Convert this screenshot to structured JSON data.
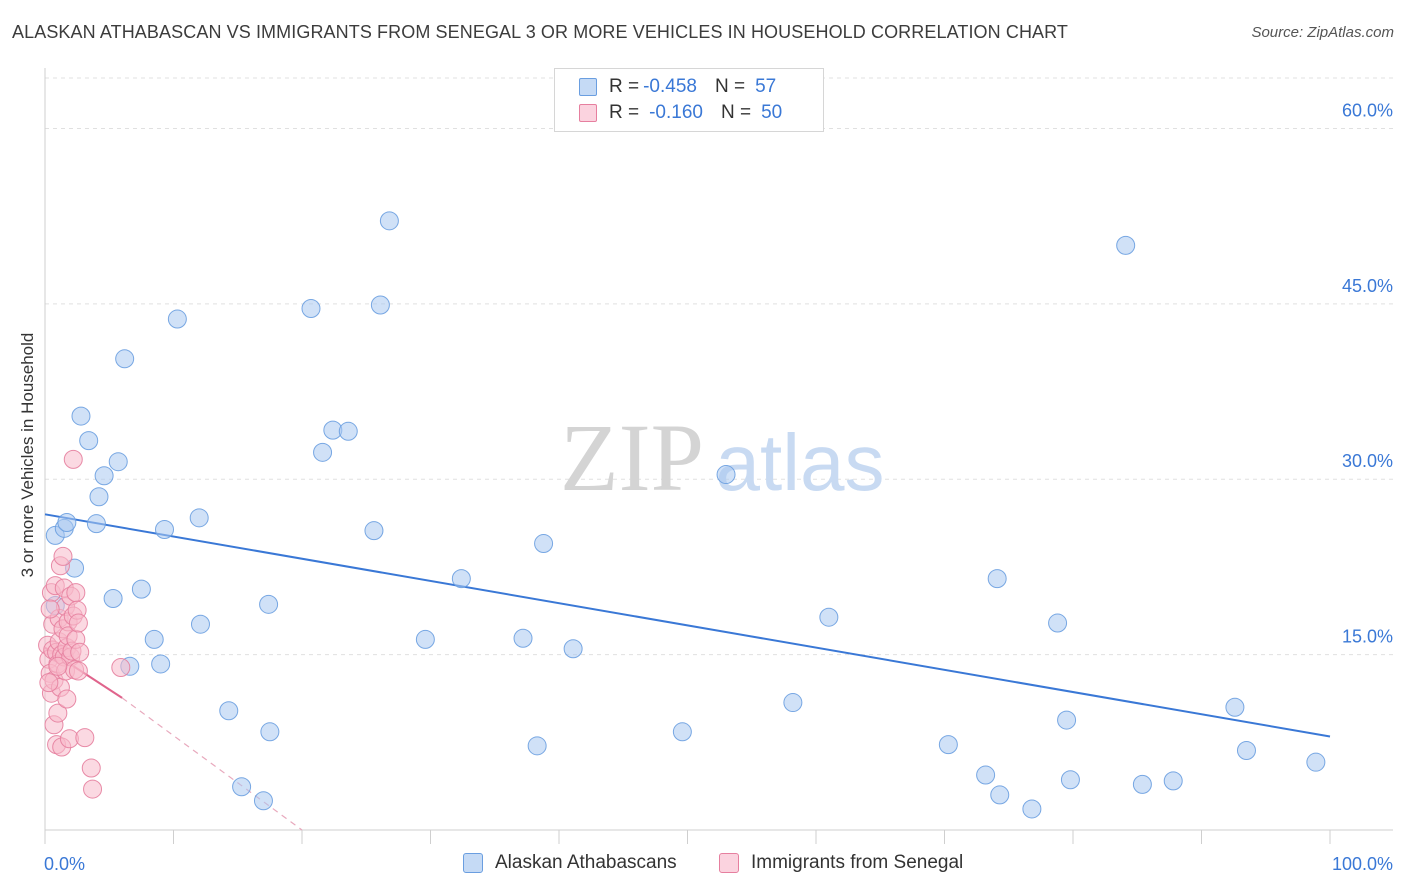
{
  "title": "ALASKAN ATHABASCAN VS IMMIGRANTS FROM SENEGAL 3 OR MORE VEHICLES IN HOUSEHOLD CORRELATION CHART",
  "source": "Source: ZipAtlas.com",
  "watermark": {
    "part1": "ZIP",
    "part2": "atlas"
  },
  "legend": {
    "rows": [
      {
        "r_label": "R =",
        "r_value": "-0.458",
        "n_label": "N =",
        "n_value": "57",
        "color": "#a9c8f0",
        "border": "#6a9ee0"
      },
      {
        "r_label": "R =",
        "r_value": "-0.160",
        "n_label": "N =",
        "n_value": "50",
        "color": "#f7b9cb",
        "border": "#e67f9f"
      }
    ]
  },
  "bottom_legend": [
    {
      "label": "Alaskan Athabascans",
      "color": "#a9c8f0",
      "border": "#6a9ee0"
    },
    {
      "label": "Immigrants from Senegal",
      "color": "#f7b9cb",
      "border": "#e67f9f"
    }
  ],
  "chart_data": {
    "type": "scatter",
    "title": "ALASKAN ATHABASCAN VS IMMIGRANTS FROM SENEGAL 3 OR MORE VEHICLES IN HOUSEHOLD CORRELATION CHART",
    "xlabel": "",
    "ylabel": "3 or more Vehicles in Household",
    "xlim": [
      0,
      100
    ],
    "ylim": [
      0,
      65
    ],
    "x_tick_labels": [
      "0.0%",
      "100.0%"
    ],
    "y_ticks": [
      15,
      30,
      45,
      60
    ],
    "y_tick_labels": [
      "15.0%",
      "30.0%",
      "45.0%",
      "60.0%"
    ],
    "grid": true,
    "series": [
      {
        "name": "Alaskan Athabascans",
        "color": "#6a9ee0",
        "fill": "#a9c8f0",
        "points": [
          [
            0.8,
            19.2
          ],
          [
            0.8,
            25.2
          ],
          [
            1.5,
            25.8
          ],
          [
            1.7,
            26.3
          ],
          [
            2.3,
            22.4
          ],
          [
            2.8,
            35.4
          ],
          [
            3.4,
            33.3
          ],
          [
            4.0,
            26.2
          ],
          [
            4.2,
            28.5
          ],
          [
            4.6,
            30.3
          ],
          [
            5.3,
            19.8
          ],
          [
            5.7,
            31.5
          ],
          [
            6.2,
            40.3
          ],
          [
            6.6,
            14.0
          ],
          [
            7.5,
            20.6
          ],
          [
            8.5,
            16.3
          ],
          [
            9.0,
            14.2
          ],
          [
            9.3,
            25.7
          ],
          [
            10.3,
            43.7
          ],
          [
            12.0,
            26.7
          ],
          [
            12.1,
            17.6
          ],
          [
            14.3,
            10.2
          ],
          [
            15.3,
            3.7
          ],
          [
            17.0,
            2.5
          ],
          [
            17.5,
            8.4
          ],
          [
            17.4,
            19.3
          ],
          [
            20.7,
            44.6
          ],
          [
            21.6,
            32.3
          ],
          [
            22.4,
            34.2
          ],
          [
            23.6,
            34.1
          ],
          [
            25.6,
            25.6
          ],
          [
            26.1,
            44.9
          ],
          [
            26.8,
            52.1
          ],
          [
            29.6,
            16.3
          ],
          [
            32.4,
            21.5
          ],
          [
            37.2,
            16.4
          ],
          [
            38.3,
            7.2
          ],
          [
            38.8,
            24.5
          ],
          [
            41.1,
            15.5
          ],
          [
            49.6,
            8.4
          ],
          [
            53.0,
            30.4
          ],
          [
            58.2,
            10.9
          ],
          [
            61.0,
            18.2
          ],
          [
            70.3,
            7.3
          ],
          [
            73.2,
            4.7
          ],
          [
            74.1,
            21.5
          ],
          [
            74.3,
            3.0
          ],
          [
            76.8,
            1.8
          ],
          [
            78.8,
            17.7
          ],
          [
            79.5,
            9.4
          ],
          [
            79.8,
            4.3
          ],
          [
            84.1,
            50.0
          ],
          [
            85.4,
            3.9
          ],
          [
            87.8,
            4.2
          ],
          [
            92.6,
            10.5
          ],
          [
            93.5,
            6.8
          ],
          [
            98.9,
            5.8
          ]
        ],
        "trend": {
          "x": [
            0,
            100
          ],
          "y": [
            27.0,
            8.0
          ]
        }
      },
      {
        "name": "Immigrants from Senegal",
        "color": "#e67f9f",
        "fill": "#f7b9cb",
        "points": [
          [
            0.2,
            15.8
          ],
          [
            0.3,
            14.6
          ],
          [
            0.4,
            13.4
          ],
          [
            0.5,
            11.7
          ],
          [
            0.5,
            20.3
          ],
          [
            0.6,
            17.6
          ],
          [
            0.6,
            15.4
          ],
          [
            0.7,
            9.0
          ],
          [
            0.7,
            12.8
          ],
          [
            0.8,
            20.9
          ],
          [
            0.9,
            15.2
          ],
          [
            0.9,
            7.3
          ],
          [
            1.0,
            14.2
          ],
          [
            1.0,
            10.0
          ],
          [
            1.1,
            18.1
          ],
          [
            1.1,
            16.1
          ],
          [
            1.2,
            22.6
          ],
          [
            1.2,
            12.2
          ],
          [
            1.3,
            15.0
          ],
          [
            1.3,
            7.1
          ],
          [
            1.4,
            23.4
          ],
          [
            1.4,
            17.2
          ],
          [
            1.5,
            14.8
          ],
          [
            1.5,
            20.7
          ],
          [
            1.6,
            19.1
          ],
          [
            1.6,
            13.6
          ],
          [
            1.7,
            15.6
          ],
          [
            1.7,
            11.2
          ],
          [
            1.8,
            17.8
          ],
          [
            1.8,
            16.6
          ],
          [
            1.9,
            7.8
          ],
          [
            2.0,
            14.8
          ],
          [
            2.0,
            20.0
          ],
          [
            2.1,
            15.3
          ],
          [
            2.2,
            31.7
          ],
          [
            2.2,
            18.3
          ],
          [
            2.3,
            13.7
          ],
          [
            2.4,
            16.3
          ],
          [
            2.4,
            20.3
          ],
          [
            2.5,
            18.8
          ],
          [
            2.6,
            17.7
          ],
          [
            2.6,
            13.6
          ],
          [
            2.7,
            15.2
          ],
          [
            3.1,
            7.9
          ],
          [
            3.6,
            5.3
          ],
          [
            3.7,
            3.5
          ],
          [
            5.9,
            13.9
          ],
          [
            1.0,
            14.0
          ],
          [
            0.4,
            18.9
          ],
          [
            0.3,
            12.6
          ]
        ],
        "trend": {
          "x": [
            0,
            6.0
          ],
          "y": [
            15.6,
            11.3
          ]
        },
        "trend_extension": {
          "x": [
            6.0,
            20.0
          ],
          "y": [
            11.3,
            0
          ]
        }
      }
    ]
  }
}
